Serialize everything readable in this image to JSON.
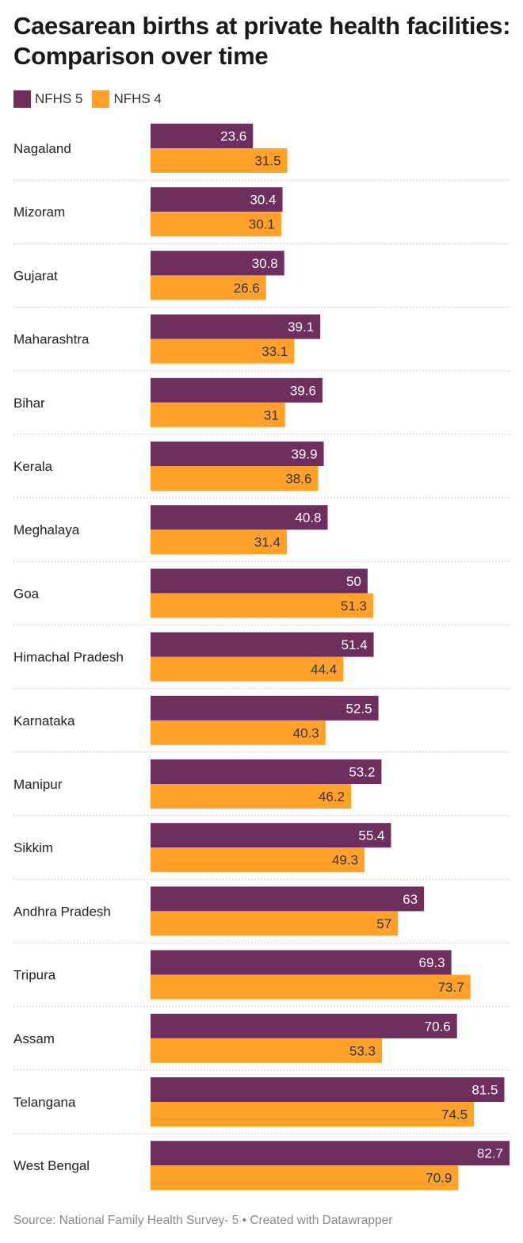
{
  "title": "Caesarean births at private health facilities: Comparison over time",
  "legend": [
    {
      "label": "NFHS 5",
      "color": "#6e2f5f"
    },
    {
      "label": "NFHS 4",
      "color": "#ffa12a"
    }
  ],
  "source": "Source: National Family Health Survey- 5 • Created with Datawrapper",
  "chart_data": {
    "type": "bar",
    "orientation": "horizontal",
    "xlim": [
      0,
      82.7
    ],
    "grid": false,
    "legend_position": "top-left",
    "categories": [
      "Nagaland",
      "Mizoram",
      "Gujarat",
      "Maharashtra",
      "Bihar",
      "Kerala",
      "Meghalaya",
      "Goa",
      "Himachal Pradesh",
      "Karnataka",
      "Manipur",
      "Sikkim",
      "Andhra Pradesh",
      "Tripura",
      "Assam",
      "Telangana",
      "West Bengal"
    ],
    "series": [
      {
        "name": "NFHS 5",
        "color": "#6e2f5f",
        "values": [
          23.6,
          30.4,
          30.8,
          39.1,
          39.6,
          39.9,
          40.8,
          50,
          51.4,
          52.5,
          53.2,
          55.4,
          63,
          69.3,
          70.6,
          81.5,
          82.7
        ]
      },
      {
        "name": "NFHS 4",
        "color": "#ffa12a",
        "values": [
          31.5,
          30.1,
          26.6,
          33.1,
          31,
          38.6,
          31.4,
          51.3,
          44.4,
          40.3,
          46.2,
          49.3,
          57,
          73.7,
          53.3,
          74.5,
          70.9
        ]
      }
    ]
  }
}
